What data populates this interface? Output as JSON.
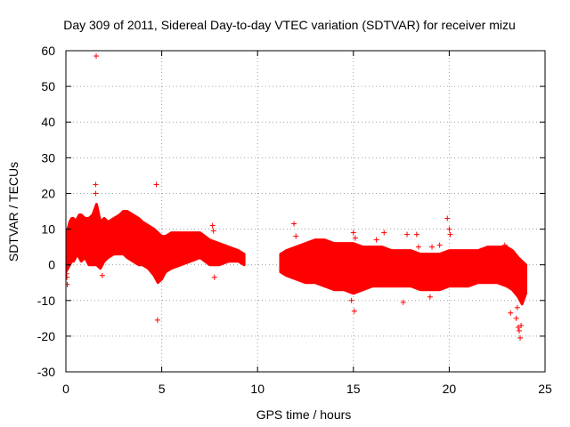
{
  "chart_data": {
    "type": "scatter",
    "title": "Day 309 of 2011, Sidereal Day-to-day VTEC variation (SDTVAR) for receiver mizu",
    "xlabel": "GPS time / hours",
    "ylabel": "SDTVAR / TECUs",
    "xlim": [
      0,
      25
    ],
    "ylim": [
      -30,
      60
    ],
    "xticks": [
      0,
      5,
      10,
      15,
      20,
      25
    ],
    "yticks": [
      -30,
      -20,
      -10,
      0,
      10,
      20,
      30,
      40,
      50,
      60
    ],
    "grid": true,
    "legend": "none",
    "series_color": "#ff0000",
    "marker": "+",
    "envelope": {
      "name": "SDTVAR",
      "segments": [
        {
          "x": [
            0.0,
            0.1,
            0.2,
            0.3,
            0.4,
            0.5,
            0.6,
            0.7,
            0.8,
            1.0,
            1.2,
            1.4,
            1.6,
            1.8,
            2.0,
            2.2,
            2.5,
            2.8,
            3.0,
            3.2,
            3.5,
            3.8,
            4.0,
            4.3,
            4.6,
            4.8,
            5.0,
            5.2,
            5.5,
            6.0,
            6.5,
            7.0,
            7.5,
            8.0,
            8.5,
            9.0,
            9.3
          ],
          "upper": [
            7,
            10,
            12,
            13,
            13,
            12,
            13,
            14,
            14,
            13,
            13,
            14,
            17,
            12,
            13,
            12,
            13,
            14,
            15,
            15,
            14,
            13,
            12,
            11,
            10,
            9,
            8,
            8,
            9,
            9,
            9,
            9,
            7,
            6,
            5,
            4,
            3
          ],
          "lower": [
            -2,
            -1,
            0,
            1,
            1,
            2,
            3,
            2,
            1,
            2,
            0,
            0,
            0,
            -1,
            1,
            2,
            3,
            3,
            3,
            2,
            1,
            0,
            0,
            -1,
            -3,
            -5,
            -4,
            -2,
            -1,
            0,
            1,
            2,
            0,
            0,
            1,
            1,
            0
          ]
        },
        {
          "x": [
            11.2,
            11.5,
            12.0,
            12.5,
            13.0,
            13.5,
            14.0,
            14.5,
            15.0,
            15.5,
            16.0,
            16.5,
            17.0,
            17.5,
            18.0,
            18.5,
            19.0,
            19.5,
            20.0,
            20.5,
            21.0,
            21.5,
            22.0,
            22.5,
            23.0,
            23.3,
            23.6,
            23.8,
            24.0
          ],
          "upper": [
            3,
            4,
            5,
            6,
            7,
            7,
            6,
            6,
            6,
            5,
            5,
            5,
            4,
            4,
            4,
            3,
            3,
            3,
            4,
            4,
            4,
            4,
            5,
            5,
            5,
            4,
            2,
            1,
            0
          ],
          "lower": [
            -2,
            -3,
            -4,
            -5,
            -5,
            -6,
            -7,
            -7,
            -8,
            -7,
            -6,
            -6,
            -6,
            -6,
            -6,
            -7,
            -7,
            -7,
            -6,
            -6,
            -6,
            -5,
            -5,
            -5,
            -6,
            -7,
            -9,
            -11,
            -8
          ]
        }
      ]
    },
    "outliers": {
      "name": "SDTVAR outliers",
      "x": [
        1.58,
        1.55,
        4.72,
        4.78,
        1.55,
        0.05,
        0.07,
        0.03,
        1.9,
        7.65,
        7.7,
        7.75,
        11.9,
        12.0,
        15.0,
        15.05,
        15.1,
        16.2,
        16.6,
        17.8,
        18.3,
        18.4,
        19.1,
        19.5,
        19.9,
        20.0,
        20.05,
        22.9,
        23.2,
        23.5,
        23.6,
        23.65,
        23.7,
        23.75,
        23.55,
        23.8,
        14.9,
        17.6,
        19.0
      ],
      "y": [
        58.5,
        22.5,
        22.5,
        -15.5,
        20,
        -3.5,
        -5.5,
        -2.5,
        -3,
        11,
        9.5,
        -3.5,
        11.5,
        8,
        9,
        -13,
        7.5,
        7,
        9,
        8.5,
        8.5,
        5,
        5,
        5.5,
        13,
        10,
        8.5,
        5.5,
        -13.5,
        -15,
        -17.5,
        -18.5,
        -20.5,
        -17,
        -12,
        -9,
        -10,
        -10.5,
        -9
      ]
    }
  }
}
